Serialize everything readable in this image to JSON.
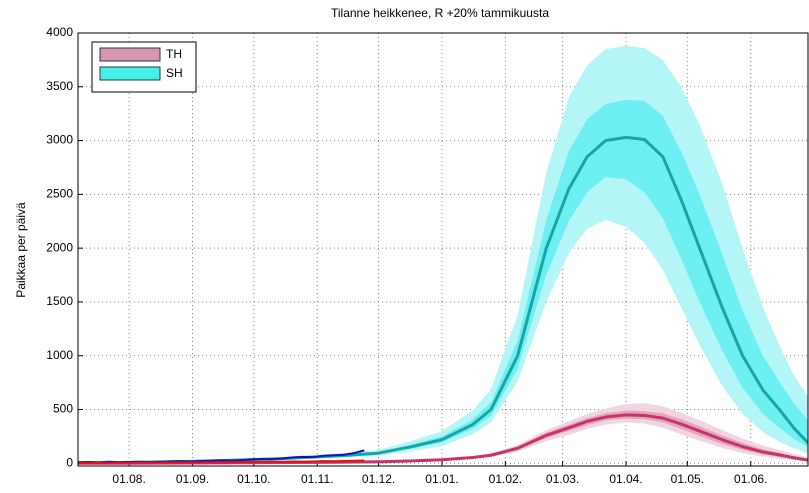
{
  "chart_data": {
    "type": "line",
    "title": "Tilanne heikkenee, R +20% tammikuusta",
    "ylabel": "Paikkaa per päivä",
    "x": [
      -25,
      0,
      15,
      31,
      46,
      61,
      76,
      92,
      107,
      122,
      137,
      153,
      168,
      177,
      190,
      204,
      215,
      224,
      233,
      243,
      252,
      261,
      270,
      279,
      290,
      300,
      310,
      318,
      325,
      332
    ],
    "xlim": [
      -25,
      332
    ],
    "xticks": [
      {
        "value": 0,
        "label": "01.08."
      },
      {
        "value": 31,
        "label": "01.09."
      },
      {
        "value": 61,
        "label": "01.10."
      },
      {
        "value": 92,
        "label": "01.11."
      },
      {
        "value": 122,
        "label": "01.12."
      },
      {
        "value": 153,
        "label": "01.01."
      },
      {
        "value": 184,
        "label": "01.02."
      },
      {
        "value": 212,
        "label": "01.03."
      },
      {
        "value": 243,
        "label": "01.04."
      },
      {
        "value": 273,
        "label": "01.05."
      },
      {
        "value": 304,
        "label": "01.06."
      }
    ],
    "ylim": [
      -25,
      4000
    ],
    "yticks": [
      0,
      500,
      1000,
      1500,
      2000,
      2500,
      3000,
      3500,
      4000
    ],
    "grid": true,
    "legend": "upper left",
    "series": [
      {
        "name": "SH",
        "color": "#17a5a5",
        "legend_color": "#44f0ea",
        "band_colors": [
          "#b4f6f8",
          "#6ef0f2"
        ],
        "values": [
          5,
          8,
          12,
          18,
          25,
          35,
          45,
          60,
          75,
          95,
          150,
          220,
          360,
          500,
          1000,
          2000,
          2550,
          2850,
          3000,
          3030,
          3010,
          2850,
          2450,
          2000,
          1450,
          1000,
          680,
          500,
          330,
          190
        ],
        "outer_lower": [
          4,
          6,
          9,
          14,
          19,
          26,
          34,
          45,
          56,
          70,
          110,
          160,
          270,
          380,
          760,
          1500,
          1950,
          2180,
          2260,
          2200,
          2050,
          1800,
          1450,
          1100,
          720,
          460,
          290,
          200,
          140,
          90
        ],
        "inner_lower": [
          4,
          7,
          11,
          16,
          22,
          31,
          40,
          54,
          67,
          85,
          133,
          195,
          320,
          440,
          880,
          1750,
          2250,
          2520,
          2660,
          2640,
          2520,
          2280,
          1900,
          1500,
          1050,
          700,
          460,
          330,
          230,
          150
        ],
        "inner_upper": [
          6,
          9,
          13,
          20,
          28,
          39,
          50,
          67,
          84,
          107,
          170,
          250,
          410,
          570,
          1140,
          2260,
          2900,
          3200,
          3340,
          3380,
          3370,
          3230,
          2900,
          2500,
          1950,
          1420,
          1000,
          760,
          560,
          400
        ],
        "outer_upper": [
          7,
          10,
          16,
          23,
          33,
          46,
          59,
          78,
          98,
          125,
          200,
          300,
          490,
          690,
          1380,
          2700,
          3400,
          3700,
          3850,
          3880,
          3860,
          3750,
          3500,
          3150,
          2600,
          2000,
          1450,
          1100,
          820,
          620
        ]
      },
      {
        "name": "TH",
        "color": "#c8326a",
        "legend_color": "#d996b4",
        "band_colors": [
          "#f2d3e0",
          "#e2a6be"
        ],
        "values": [
          1,
          1,
          2,
          3,
          4,
          5,
          7,
          9,
          11,
          14,
          22,
          33,
          54,
          75,
          140,
          260,
          330,
          390,
          430,
          450,
          445,
          420,
          365,
          300,
          220,
          155,
          105,
          78,
          52,
          30
        ],
        "outer_lower": [
          1,
          1,
          2,
          3,
          4,
          5,
          6,
          8,
          10,
          12,
          18,
          27,
          44,
          60,
          110,
          205,
          265,
          320,
          360,
          380,
          370,
          330,
          270,
          210,
          145,
          95,
          62,
          45,
          30,
          18
        ],
        "inner_lower": [
          1,
          1,
          2,
          3,
          4,
          5,
          7,
          9,
          10,
          13,
          20,
          30,
          49,
          68,
          125,
          235,
          300,
          355,
          400,
          415,
          410,
          380,
          320,
          255,
          180,
          125,
          82,
          60,
          40,
          24
        ],
        "inner_upper": [
          1,
          1,
          2,
          3,
          4,
          5,
          7,
          9,
          12,
          15,
          24,
          36,
          59,
          82,
          155,
          285,
          360,
          420,
          465,
          490,
          485,
          465,
          410,
          345,
          260,
          190,
          130,
          98,
          68,
          40
        ],
        "outer_upper": [
          1,
          1,
          2,
          3,
          4,
          6,
          8,
          10,
          13,
          17,
          27,
          40,
          65,
          92,
          170,
          310,
          390,
          460,
          510,
          550,
          560,
          530,
          470,
          400,
          310,
          230,
          165,
          125,
          90,
          55
        ]
      }
    ],
    "observed": [
      {
        "color": "#1414b4",
        "x": [
          -25,
          -20,
          -15,
          -10,
          -5,
          0,
          5,
          10,
          15,
          20,
          25,
          30,
          35,
          40,
          45,
          50,
          55,
          60,
          65,
          70,
          75,
          80,
          85,
          90,
          95,
          100,
          105,
          110,
          115
        ],
        "values": [
          10,
          12,
          9,
          14,
          11,
          13,
          15,
          12,
          16,
          18,
          20,
          17,
          22,
          25,
          28,
          26,
          30,
          35,
          40,
          38,
          45,
          55,
          60,
          58,
          70,
          75,
          80,
          95,
          120
        ]
      },
      {
        "color": "#dd1414",
        "x": [
          -25,
          -20,
          -15,
          -10,
          -5,
          0,
          5,
          10,
          15,
          20,
          25,
          30,
          35,
          40,
          45,
          50,
          55,
          60,
          65,
          70,
          75,
          80,
          85,
          90,
          95,
          100,
          105,
          110,
          115
        ],
        "values": [
          3,
          4,
          5,
          4,
          6,
          5,
          6,
          7,
          6,
          8,
          7,
          9,
          8,
          10,
          9,
          11,
          12,
          11,
          13,
          14,
          15,
          17,
          16,
          18,
          20,
          19,
          22,
          24,
          26
        ]
      }
    ]
  }
}
